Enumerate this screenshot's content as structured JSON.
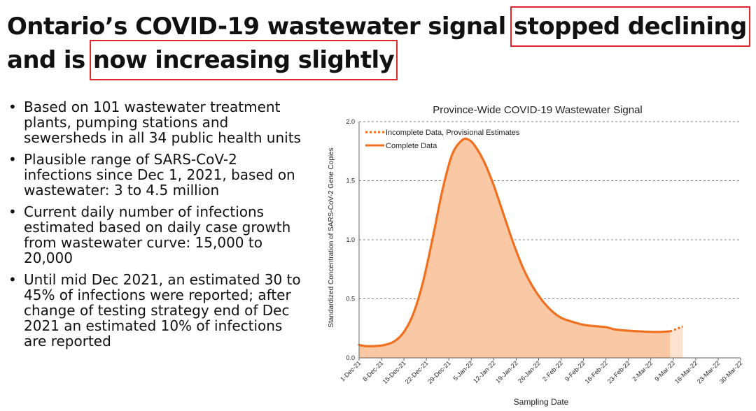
{
  "slide": {
    "title_part1": "Ontario’s COVID-19 wastewater signal ",
    "title_highlight1": "stopped declining",
    "title_part2": "and is ",
    "title_highlight2": "now increasing slightly",
    "highlight_color": "#e0282a",
    "bullet_symbol": "•",
    "bullets": [
      "Based on 101 wastewater treatment plants, pumping stations and sewersheds in all 34 public health units",
      "Plausible range of SARS-CoV-2 infections since Dec 1, 2021, based on wastewater: 3 to 4.5 million",
      "Current daily number of infections estimated based on daily case growth from wastewater curve: 15,000 to 20,000",
      "Until mid Dec 2021, an estimated 30 to 45% of infections were reported; after change of testing strategy end of Dec 2021 an estimated 10% of infections are reported"
    ]
  },
  "chart_data": {
    "type": "area",
    "title": "Province-Wide COVID-19 Wastewater Signal",
    "xlabel": "Sampling Date",
    "ylabel": "Standardized Concentration of SARS-CoV-2 Gene Copies",
    "ylim": [
      0,
      2.0
    ],
    "yticks": [
      "0.0",
      "0.5",
      "1.0",
      "1.5",
      "2.0"
    ],
    "x_range_days": [
      "2021-12-01",
      "2022-03-30"
    ],
    "xticks": [
      "1-Dec-21",
      "8-Dec-21",
      "15-Dec-21",
      "22-Dec-21",
      "29-Dec-21",
      "5-Jan-22",
      "12-Jan-22",
      "19-Jan-22",
      "26-Jan-22",
      "2-Feb-22",
      "9-Feb-22",
      "16-Feb-22",
      "23-Feb-22",
      "2-Mar-22",
      "9-Mar-22",
      "16-Mar-22",
      "23-Mar-22",
      "30-Mar-22"
    ],
    "grid": "horizontal dashed",
    "legend_position": "top-left",
    "series": [
      {
        "name": "Complete Data",
        "color": "#f07020",
        "fill": "#fac8a4",
        "x": [
          "2021-12-01",
          "2021-12-03",
          "2021-12-06",
          "2021-12-09",
          "2021-12-12",
          "2021-12-15",
          "2021-12-18",
          "2021-12-21",
          "2021-12-24",
          "2021-12-27",
          "2021-12-30",
          "2022-01-02",
          "2022-01-04",
          "2022-01-06",
          "2022-01-09",
          "2022-01-12",
          "2022-01-15",
          "2022-01-18",
          "2022-01-21",
          "2022-01-24",
          "2022-01-27",
          "2022-01-30",
          "2022-02-02",
          "2022-02-05",
          "2022-02-09",
          "2022-02-12",
          "2022-02-16",
          "2022-02-19",
          "2022-02-23",
          "2022-02-26",
          "2022-03-02",
          "2022-03-05",
          "2022-03-08"
        ],
        "y": [
          0.11,
          0.1,
          0.1,
          0.11,
          0.14,
          0.22,
          0.38,
          0.65,
          1.02,
          1.42,
          1.72,
          1.84,
          1.85,
          1.8,
          1.66,
          1.46,
          1.22,
          0.98,
          0.77,
          0.61,
          0.49,
          0.4,
          0.34,
          0.31,
          0.28,
          0.27,
          0.26,
          0.24,
          0.23,
          0.225,
          0.22,
          0.22,
          0.225
        ]
      },
      {
        "name": "Incomplete Data, Provisional Estimates",
        "color": "#f07020",
        "fill": "#fde2d0",
        "dashed": true,
        "x": [
          "2022-03-08",
          "2022-03-10",
          "2022-03-12"
        ],
        "y": [
          0.225,
          0.245,
          0.265
        ]
      }
    ]
  }
}
